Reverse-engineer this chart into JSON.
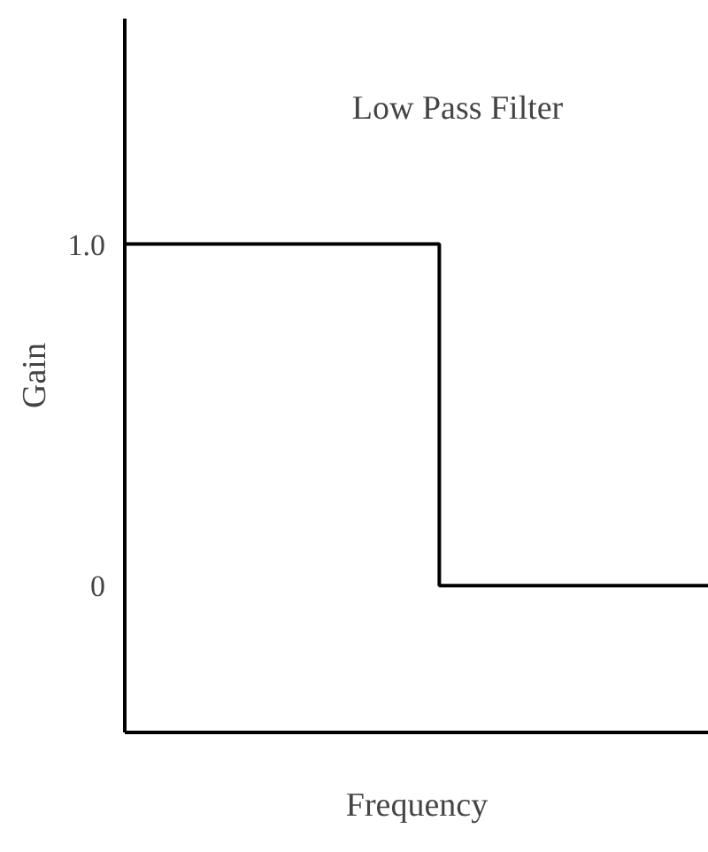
{
  "chart_data": {
    "type": "step",
    "title": "Low Pass Filter",
    "xlabel": "Frequency",
    "ylabel": "Gain",
    "categories": [
      null,
      null,
      null,
      null,
      null,
      null,
      null,
      null,
      null,
      null,
      null,
      null,
      null,
      null
    ],
    "series": [
      {
        "color": "#000000",
        "values": [
          1,
          1,
          1,
          1,
          1,
          1,
          1,
          0,
          0,
          0,
          0,
          0,
          0,
          0
        ]
      }
    ],
    "ylim": [
      -0.43,
      1.66
    ],
    "yticks": [
      {
        "value": 0,
        "label": "0"
      },
      {
        "value": 1,
        "label": "1.0"
      }
    ],
    "grid": false,
    "tick_labels": "y"
  }
}
